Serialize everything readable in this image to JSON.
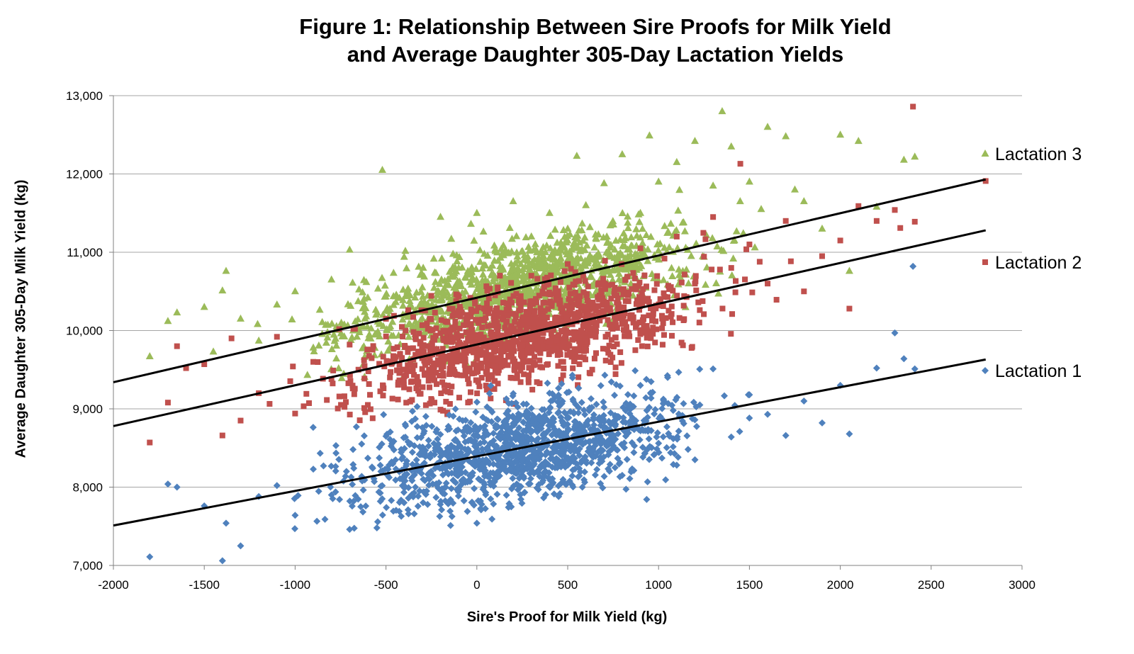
{
  "title_line1": "Figure 1: Relationship Between Sire Proofs for Milk Yield",
  "title_line2": "and Average Daughter 305-Day Lactation Yields",
  "chart_data": {
    "type": "scatter",
    "title": "Figure 1: Relationship Between Sire Proofs for Milk Yield and Average Daughter 305-Day Lactation Yields",
    "xlabel": "Sire's Proof for Milk Yield (kg)",
    "ylabel": "Average Daughter 305-Day Milk Yield (kg)",
    "xlim": [
      -2000,
      3000
    ],
    "ylim": [
      7000,
      13000
    ],
    "x_ticks": [
      "-2000",
      "-1500",
      "-1000",
      "-500",
      "0",
      "500",
      "1000",
      "1500",
      "2000",
      "2500",
      "3000"
    ],
    "y_ticks": [
      "7,000",
      "8,000",
      "9,000",
      "10,000",
      "11,000",
      "12,000",
      "13,000"
    ],
    "grid": "horizontal",
    "legend_position": "right",
    "series": [
      {
        "name": "Lactation 1",
        "color": "#4f81bd",
        "marker": "diamond",
        "trend": {
          "x1": -2000,
          "y1": 7510,
          "x2": 2800,
          "y2": 9630
        },
        "sample_points": [
          [
            -1800,
            7110
          ],
          [
            -1700,
            8040
          ],
          [
            -1650,
            8000
          ],
          [
            -1500,
            7760
          ],
          [
            -1400,
            7060
          ],
          [
            -1380,
            7540
          ],
          [
            -1300,
            7250
          ],
          [
            -1200,
            7880
          ],
          [
            -1100,
            8020
          ],
          [
            -1000,
            7640
          ],
          [
            -900,
            8230
          ],
          [
            -800,
            7900
          ],
          [
            -700,
            7460
          ],
          [
            -600,
            8370
          ],
          [
            -550,
            7480
          ],
          [
            -500,
            8650
          ],
          [
            -400,
            8120
          ],
          [
            -300,
            8760
          ],
          [
            -200,
            7960
          ],
          [
            -100,
            8400
          ],
          [
            0,
            7540
          ],
          [
            50,
            8700
          ],
          [
            150,
            8260
          ],
          [
            200,
            8900
          ],
          [
            300,
            8520
          ],
          [
            400,
            9200
          ],
          [
            450,
            7880
          ],
          [
            500,
            8720
          ],
          [
            600,
            8340
          ],
          [
            700,
            9020
          ],
          [
            800,
            8150
          ],
          [
            900,
            9300
          ],
          [
            1000,
            8560
          ],
          [
            1050,
            9400
          ],
          [
            1100,
            8280
          ],
          [
            1200,
            8860
          ],
          [
            1300,
            9510
          ],
          [
            1400,
            8640
          ],
          [
            1500,
            9180
          ],
          [
            1600,
            8930
          ],
          [
            1700,
            8660
          ],
          [
            1800,
            9100
          ],
          [
            1900,
            8820
          ],
          [
            2000,
            9300
          ],
          [
            2050,
            8680
          ],
          [
            2200,
            9520
          ],
          [
            2300,
            9970
          ],
          [
            2350,
            9640
          ],
          [
            2400,
            10820
          ],
          [
            2410,
            9510
          ]
        ]
      },
      {
        "name": "Lactation 2",
        "color": "#c0504d",
        "marker": "square",
        "trend": {
          "x1": -2000,
          "y1": 8780,
          "x2": 2800,
          "y2": 11280
        },
        "sample_points": [
          [
            -1800,
            8570
          ],
          [
            -1700,
            9080
          ],
          [
            -1650,
            9800
          ],
          [
            -1600,
            9520
          ],
          [
            -1500,
            9570
          ],
          [
            -1400,
            8660
          ],
          [
            -1350,
            9900
          ],
          [
            -1300,
            8850
          ],
          [
            -1200,
            9200
          ],
          [
            -1100,
            9920
          ],
          [
            -1000,
            8940
          ],
          [
            -900,
            9600
          ],
          [
            -800,
            9380
          ],
          [
            -700,
            9820
          ],
          [
            -600,
            9050
          ],
          [
            -500,
            10150
          ],
          [
            -400,
            9420
          ],
          [
            -300,
            9800
          ],
          [
            -200,
            8990
          ],
          [
            -100,
            10250
          ],
          [
            0,
            9560
          ],
          [
            100,
            10450
          ],
          [
            200,
            9820
          ],
          [
            300,
            10700
          ],
          [
            400,
            10080
          ],
          [
            500,
            10850
          ],
          [
            600,
            9900
          ],
          [
            700,
            10600
          ],
          [
            800,
            10250
          ],
          [
            900,
            11050
          ],
          [
            1000,
            10320
          ],
          [
            1100,
            11200
          ],
          [
            1200,
            10600
          ],
          [
            1300,
            11450
          ],
          [
            1400,
            10800
          ],
          [
            1450,
            12130
          ],
          [
            1500,
            11100
          ],
          [
            1600,
            10600
          ],
          [
            1700,
            11400
          ],
          [
            1800,
            10500
          ],
          [
            1900,
            10950
          ],
          [
            2000,
            11150
          ],
          [
            2050,
            10280
          ],
          [
            2100,
            11590
          ],
          [
            2200,
            11400
          ],
          [
            2300,
            11540
          ],
          [
            2330,
            11310
          ],
          [
            2400,
            12860
          ],
          [
            2410,
            11390
          ],
          [
            2800,
            11910
          ]
        ]
      },
      {
        "name": "Lactation 3",
        "color": "#9bbb59",
        "marker": "triangle",
        "trend": {
          "x1": -2000,
          "y1": 9340,
          "x2": 2800,
          "y2": 11930
        },
        "sample_points": [
          [
            -1800,
            9670
          ],
          [
            -1700,
            10120
          ],
          [
            -1650,
            10230
          ],
          [
            -1500,
            10300
          ],
          [
            -1450,
            9730
          ],
          [
            -1400,
            10510
          ],
          [
            -1380,
            10760
          ],
          [
            -1300,
            10150
          ],
          [
            -1200,
            9870
          ],
          [
            -1100,
            10330
          ],
          [
            -1000,
            10500
          ],
          [
            -900,
            9780
          ],
          [
            -800,
            10650
          ],
          [
            -700,
            11030
          ],
          [
            -600,
            10420
          ],
          [
            -520,
            12050
          ],
          [
            -400,
            10940
          ],
          [
            -300,
            10550
          ],
          [
            -200,
            11450
          ],
          [
            -100,
            10800
          ],
          [
            0,
            11500
          ],
          [
            100,
            11030
          ],
          [
            200,
            11650
          ],
          [
            300,
            11200
          ],
          [
            400,
            11500
          ],
          [
            500,
            11300
          ],
          [
            550,
            12230
          ],
          [
            600,
            11600
          ],
          [
            700,
            11880
          ],
          [
            800,
            12250
          ],
          [
            900,
            11500
          ],
          [
            950,
            12490
          ],
          [
            1000,
            11900
          ],
          [
            1100,
            12150
          ],
          [
            1200,
            12420
          ],
          [
            1300,
            11850
          ],
          [
            1350,
            12800
          ],
          [
            1400,
            12350
          ],
          [
            1500,
            11900
          ],
          [
            1600,
            12600
          ],
          [
            1700,
            12480
          ],
          [
            1750,
            11800
          ],
          [
            1800,
            11650
          ],
          [
            1900,
            11300
          ],
          [
            2000,
            12500
          ],
          [
            2050,
            10760
          ],
          [
            2100,
            12420
          ],
          [
            2200,
            11580
          ],
          [
            2350,
            12180
          ],
          [
            2410,
            12220
          ]
        ]
      }
    ]
  }
}
